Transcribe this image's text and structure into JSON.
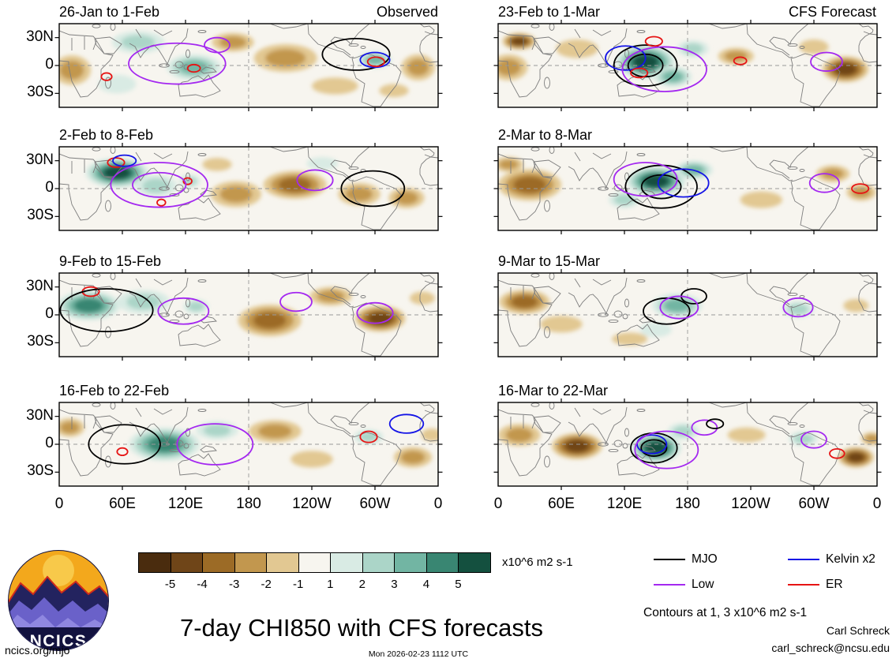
{
  "header": {
    "left_heading": "Observed",
    "right_heading": "CFS Forecast"
  },
  "footer": {
    "title": "7-day CHI850 with CFS forecasts",
    "site": "ncics.org/mjo",
    "timestamp": "Mon 2026-02-23 1112 UTC",
    "author": "Carl Schreck",
    "email": "carl_schreck@ncsu.edu",
    "contours_note": "Contours at 1, 3 x10^6 m2 s-1",
    "logo_text": "NCICS"
  },
  "axes": {
    "x_tick_labels": [
      "0",
      "60E",
      "120E",
      "180",
      "120W",
      "60W",
      "0"
    ],
    "y_tick_labels": [
      "30N",
      "0",
      "30S"
    ]
  },
  "colorbar": {
    "units": "x10^6 m2 s-1",
    "tick_labels": [
      "-5",
      "-4",
      "-3",
      "-2",
      "-1",
      "1",
      "2",
      "3",
      "4",
      "5"
    ],
    "colors": [
      "#4a2c0e",
      "#6f4518",
      "#9c6b26",
      "#c2974e",
      "#e2c892",
      "#f7f5ef",
      "#d9ebe4",
      "#abd5c8",
      "#72b5a3",
      "#398672",
      "#14503f"
    ]
  },
  "legend": {
    "items": [
      {
        "label": "MJO",
        "color": "#000000"
      },
      {
        "label": "Low",
        "color": "#a428f0"
      },
      {
        "label": "Kelvin x2",
        "color": "#1414e6"
      },
      {
        "label": "ER",
        "color": "#e61414"
      }
    ]
  },
  "chart_data": {
    "type": "heatmap",
    "title": "7-day CHI850 with CFS forecasts",
    "description": "Eight 7-day mean CHI850 velocity-potential anomaly maps: left column observed (26-Jan to 22-Feb), right column CFS forecast (23-Feb to 22-Mar). Shading in x10^6 m2 s-1; contour overlays for MJO, Low, Kelvin x2 and ER filtered anomalies at 1 and 3 x10^6 m2 s-1.",
    "lon_range": [
      0,
      360
    ],
    "lat_range": [
      -45,
      45
    ],
    "shading_levels": [
      -5,
      -4,
      -3,
      -2,
      -1,
      1,
      2,
      3,
      4,
      5
    ],
    "shading_units": "x10^6 m2 s-1",
    "contour_levels": [
      1,
      3
    ],
    "contour_colors": {
      "MJO": "#000000",
      "Low": "#a428f0",
      "Kelvin": "#1414e6",
      "ER": "#e61414"
    },
    "panels": [
      {
        "id": "obs-1",
        "column": "Observed",
        "title": "26-Jan to 1-Feb",
        "anomalies": [
          {
            "lon": 75,
            "lat": 25,
            "v": 2,
            "rlon": 25,
            "rlat": 12
          },
          {
            "lon": 128,
            "lat": -2,
            "v": 3,
            "rlon": 26,
            "rlat": 14
          },
          {
            "lon": 55,
            "lat": -20,
            "v": 1,
            "rlon": 18,
            "rlat": 10
          },
          {
            "lon": 300,
            "lat": 6,
            "v": 3,
            "rlon": 16,
            "rlat": 9
          },
          {
            "lon": 12,
            "lat": -5,
            "v": -2,
            "rlon": 18,
            "rlat": 16
          },
          {
            "lon": 165,
            "lat": 25,
            "v": -2,
            "rlon": 20,
            "rlat": 10
          },
          {
            "lon": 215,
            "lat": 8,
            "v": -2,
            "rlon": 30,
            "rlat": 15
          },
          {
            "lon": 262,
            "lat": -22,
            "v": -1,
            "rlon": 22,
            "rlat": 9
          },
          {
            "lon": 341,
            "lat": -2,
            "v": -2,
            "rlon": 16,
            "rlat": 14
          },
          {
            "lon": 318,
            "lat": -27,
            "v": -1,
            "rlon": 14,
            "rlat": 7
          }
        ],
        "contours": [
          {
            "type": "ER",
            "lon": 45,
            "lat": -12,
            "rlon": 5,
            "rlat": 4
          },
          {
            "type": "ER",
            "lon": 128,
            "lat": -3,
            "rlon": 6,
            "rlat": 4
          },
          {
            "type": "Low",
            "lon": 112,
            "lat": 2,
            "rlon": 46,
            "rlat": 22
          },
          {
            "type": "Low",
            "lon": 150,
            "lat": 22,
            "rlon": 12,
            "rlat": 8
          },
          {
            "type": "MJO",
            "lon": 282,
            "lat": 12,
            "rlon": 32,
            "rlat": 17
          },
          {
            "type": "Kelvin",
            "lon": 300,
            "lat": 6,
            "rlon": 14,
            "rlat": 8
          },
          {
            "type": "ER",
            "lon": 301,
            "lat": 4,
            "rlon": 8,
            "rlat": 5
          }
        ]
      },
      {
        "id": "obs-2",
        "column": "Observed",
        "title": "2-Feb to 8-Feb",
        "anomalies": [
          {
            "lon": 55,
            "lat": 17,
            "v": 5,
            "rlon": 30,
            "rlat": 16
          },
          {
            "lon": 92,
            "lat": 3,
            "v": 2,
            "rlon": 20,
            "rlat": 12
          },
          {
            "lon": 124,
            "lat": 8,
            "v": 2,
            "rlon": 10,
            "rlat": 7
          },
          {
            "lon": 250,
            "lat": 27,
            "v": 1,
            "rlon": 15,
            "rlat": 7
          },
          {
            "lon": 168,
            "lat": -6,
            "v": -2,
            "rlon": 24,
            "rlat": 14
          },
          {
            "lon": 224,
            "lat": 4,
            "v": -3,
            "rlon": 30,
            "rlat": 15
          },
          {
            "lon": 285,
            "lat": -6,
            "v": -2,
            "rlon": 20,
            "rlat": 12
          },
          {
            "lon": 330,
            "lat": -10,
            "v": -2,
            "rlon": 17,
            "rlat": 11
          },
          {
            "lon": 150,
            "lat": 26,
            "v": -1,
            "rlon": 14,
            "rlat": 7
          }
        ],
        "contours": [
          {
            "type": "ER",
            "lon": 54,
            "lat": 28,
            "rlon": 8,
            "rlat": 5
          },
          {
            "type": "Kelvin",
            "lon": 62,
            "lat": 30,
            "rlon": 11,
            "rlat": 6
          },
          {
            "type": "ER",
            "lon": 122,
            "lat": 8,
            "rlon": 4,
            "rlat": 3.5
          },
          {
            "type": "ER",
            "lon": 97,
            "lat": -15,
            "rlon": 4,
            "rlat": 3.5
          },
          {
            "type": "Low",
            "lon": 95,
            "lat": 4,
            "rlon": 46,
            "rlat": 24,
            "double": true
          },
          {
            "type": "Low",
            "lon": 243,
            "lat": 9,
            "rlon": 17,
            "rlat": 11
          },
          {
            "type": "MJO",
            "lon": 298,
            "lat": 0,
            "rlon": 30,
            "rlat": 19
          }
        ]
      },
      {
        "id": "obs-3",
        "column": "Observed",
        "title": "9-Feb to 15-Feb",
        "anomalies": [
          {
            "lon": 28,
            "lat": 10,
            "v": 4,
            "rlon": 30,
            "rlat": 16
          },
          {
            "lon": 80,
            "lat": 14,
            "v": 2,
            "rlon": 25,
            "rlat": 13
          },
          {
            "lon": 130,
            "lat": 9,
            "v": 2,
            "rlon": 12,
            "rlat": 8
          },
          {
            "lon": 200,
            "lat": -6,
            "v": -3,
            "rlon": 30,
            "rlat": 17
          },
          {
            "lon": 258,
            "lat": 20,
            "v": -2,
            "rlon": 20,
            "rlat": 10
          },
          {
            "lon": 305,
            "lat": -4,
            "v": -4,
            "rlon": 24,
            "rlat": 14
          },
          {
            "lon": 345,
            "lat": 18,
            "v": -1,
            "rlon": 12,
            "rlat": 7
          }
        ],
        "contours": [
          {
            "type": "ER",
            "lon": 30,
            "lat": 25,
            "rlon": 8,
            "rlat": 5
          },
          {
            "type": "MJO",
            "lon": 45,
            "lat": 5,
            "rlon": 44,
            "rlat": 23
          },
          {
            "type": "Low",
            "lon": 118,
            "lat": 4,
            "rlon": 24,
            "rlat": 14
          },
          {
            "type": "Low",
            "lon": 225,
            "lat": 14,
            "rlon": 15,
            "rlat": 10
          },
          {
            "type": "Low",
            "lon": 300,
            "lat": 2,
            "rlon": 17,
            "rlat": 11
          }
        ]
      },
      {
        "id": "obs-4",
        "column": "Observed",
        "title": "16-Feb to 22-Feb",
        "anomalies": [
          {
            "lon": 100,
            "lat": 0,
            "v": 4,
            "rlon": 34,
            "rlat": 18
          },
          {
            "lon": 150,
            "lat": 15,
            "v": 2,
            "rlon": 20,
            "rlat": 10
          },
          {
            "lon": 294,
            "lat": 8,
            "v": 2,
            "rlon": 14,
            "rlat": 8
          },
          {
            "lon": 10,
            "lat": 18,
            "v": -2,
            "rlon": 14,
            "rlat": 10
          },
          {
            "lon": 205,
            "lat": 14,
            "v": -2,
            "rlon": 25,
            "rlat": 12
          },
          {
            "lon": 240,
            "lat": -16,
            "v": -1,
            "rlon": 20,
            "rlat": 9
          },
          {
            "lon": 336,
            "lat": -14,
            "v": -2,
            "rlon": 18,
            "rlat": 11
          },
          {
            "lon": 354,
            "lat": 10,
            "v": -1,
            "rlon": 10,
            "rlat": 7
          }
        ],
        "contours": [
          {
            "type": "MJO",
            "lon": 62,
            "lat": 0,
            "rlon": 34,
            "rlat": 21
          },
          {
            "type": "ER",
            "lon": 60,
            "lat": -8,
            "rlon": 5,
            "rlat": 4
          },
          {
            "type": "Low",
            "lon": 148,
            "lat": 0,
            "rlon": 36,
            "rlat": 22
          },
          {
            "type": "ER",
            "lon": 294,
            "lat": 8,
            "rlon": 8,
            "rlat": 6
          },
          {
            "type": "Kelvin",
            "lon": 330,
            "lat": 22,
            "rlon": 16,
            "rlat": 10
          }
        ]
      },
      {
        "id": "fcst-1",
        "column": "CFS Forecast",
        "title": "23-Feb to 1-Mar",
        "anomalies": [
          {
            "lon": 140,
            "lat": 4,
            "v": 5,
            "rlon": 28,
            "rlat": 18
          },
          {
            "lon": 166,
            "lat": -12,
            "v": 3,
            "rlon": 18,
            "rlat": 11
          },
          {
            "lon": 185,
            "lat": 18,
            "v": 2,
            "rlon": 15,
            "rlat": 9
          },
          {
            "lon": 20,
            "lat": 26,
            "v": -4,
            "rlon": 16,
            "rlat": 9
          },
          {
            "lon": 10,
            "lat": -2,
            "v": -2,
            "rlon": 18,
            "rlat": 14
          },
          {
            "lon": 75,
            "lat": 18,
            "v": -1,
            "rlon": 20,
            "rlat": 10
          },
          {
            "lon": 226,
            "lat": 10,
            "v": -2,
            "rlon": 17,
            "rlat": 9
          },
          {
            "lon": 330,
            "lat": -4,
            "v": -4,
            "rlon": 22,
            "rlat": 14
          },
          {
            "lon": 300,
            "lat": 20,
            "v": -1,
            "rlon": 14,
            "rlat": 8
          }
        ],
        "contours": [
          {
            "type": "MJO",
            "lon": 140,
            "lat": 0,
            "rlon": 30,
            "rlat": 22,
            "double": true
          },
          {
            "type": "Kelvin",
            "lon": 121,
            "lat": 8,
            "rlon": 19,
            "rlat": 13
          },
          {
            "type": "ER",
            "lon": 134,
            "lat": -8,
            "rlon": 8,
            "rlat": 5
          },
          {
            "type": "ER",
            "lon": 148,
            "lat": 26,
            "rlon": 8,
            "rlat": 5
          },
          {
            "type": "Low",
            "lon": 158,
            "lat": -4,
            "rlon": 40,
            "rlat": 24
          },
          {
            "type": "Low",
            "lon": 312,
            "lat": 4,
            "rlon": 15,
            "rlat": 10
          },
          {
            "type": "ER",
            "lon": 230,
            "lat": 5,
            "rlon": 6,
            "rlat": 4
          }
        ]
      },
      {
        "id": "fcst-2",
        "column": "CFS Forecast",
        "title": "2-Mar to 8-Mar",
        "anomalies": [
          {
            "lon": 30,
            "lat": 4,
            "v": -3,
            "rlon": 30,
            "rlat": 17
          },
          {
            "lon": 10,
            "lat": 26,
            "v": -2,
            "rlon": 14,
            "rlat": 8
          },
          {
            "lon": 150,
            "lat": 8,
            "v": 5,
            "rlon": 28,
            "rlat": 16
          },
          {
            "lon": 186,
            "lat": 20,
            "v": 3,
            "rlon": 18,
            "rlat": 10
          },
          {
            "lon": 120,
            "lat": -12,
            "v": 2,
            "rlon": 15,
            "rlat": 9
          },
          {
            "lon": 250,
            "lat": -12,
            "v": -1,
            "rlon": 20,
            "rlat": 9
          },
          {
            "lon": 318,
            "lat": 16,
            "v": -2,
            "rlon": 16,
            "rlat": 9
          },
          {
            "lon": 345,
            "lat": -4,
            "v": -2,
            "rlon": 14,
            "rlat": 9
          }
        ],
        "contours": [
          {
            "type": "MJO",
            "lon": 155,
            "lat": 2,
            "rlon": 34,
            "rlat": 23,
            "double": true
          },
          {
            "type": "Kelvin",
            "lon": 176,
            "lat": 6,
            "rlon": 24,
            "rlat": 15
          },
          {
            "type": "Low",
            "lon": 140,
            "lat": 10,
            "rlon": 30,
            "rlat": 18
          },
          {
            "type": "Low",
            "lon": 310,
            "lat": 6,
            "rlon": 14,
            "rlat": 10
          },
          {
            "type": "ER",
            "lon": 344,
            "lat": 0,
            "rlon": 8,
            "rlat": 5
          }
        ]
      },
      {
        "id": "fcst-3",
        "column": "CFS Forecast",
        "title": "9-Mar to 15-Mar",
        "anomalies": [
          {
            "lon": 25,
            "lat": 14,
            "v": -3,
            "rlon": 24,
            "rlat": 13
          },
          {
            "lon": 60,
            "lat": -10,
            "v": -1,
            "rlon": 20,
            "rlat": 9
          },
          {
            "lon": 170,
            "lat": 10,
            "v": 3,
            "rlon": 24,
            "rlat": 13
          },
          {
            "lon": 150,
            "lat": -16,
            "v": 1,
            "rlon": 15,
            "rlat": 8
          },
          {
            "lon": 285,
            "lat": 6,
            "v": 2,
            "rlon": 15,
            "rlat": 9
          },
          {
            "lon": 125,
            "lat": -26,
            "v": -1,
            "rlon": 17,
            "rlat": 7
          },
          {
            "lon": 340,
            "lat": 10,
            "v": -1,
            "rlon": 12,
            "rlat": 7
          }
        ],
        "contours": [
          {
            "type": "MJO",
            "lon": 160,
            "lat": 4,
            "rlon": 22,
            "rlat": 14
          },
          {
            "type": "MJO",
            "lon": 186,
            "lat": 20,
            "rlon": 12,
            "rlat": 8
          },
          {
            "type": "Low",
            "lon": 172,
            "lat": 8,
            "rlon": 18,
            "rlat": 12
          },
          {
            "type": "Low",
            "lon": 285,
            "lat": 8,
            "rlon": 14,
            "rlat": 10
          }
        ]
      },
      {
        "id": "fcst-4",
        "column": "CFS Forecast",
        "title": "16-Mar to 22-Mar",
        "anomalies": [
          {
            "lon": 75,
            "lat": -2,
            "v": -4,
            "rlon": 24,
            "rlat": 14
          },
          {
            "lon": 20,
            "lat": 10,
            "v": -2,
            "rlon": 20,
            "rlat": 12
          },
          {
            "lon": 150,
            "lat": -4,
            "v": 5,
            "rlon": 24,
            "rlat": 16
          },
          {
            "lon": 176,
            "lat": 14,
            "v": 2,
            "rlon": 15,
            "rlat": 9
          },
          {
            "lon": 290,
            "lat": 6,
            "v": 2,
            "rlon": 14,
            "rlat": 8
          },
          {
            "lon": 236,
            "lat": 10,
            "v": -1,
            "rlon": 18,
            "rlat": 8
          },
          {
            "lon": 340,
            "lat": -14,
            "v": -4,
            "rlon": 17,
            "rlat": 11
          },
          {
            "lon": 355,
            "lat": 6,
            "v": -2,
            "rlon": 10,
            "rlat": 7
          }
        ],
        "contours": [
          {
            "type": "MJO",
            "lon": 148,
            "lat": -4,
            "rlon": 22,
            "rlat": 16,
            "double": true
          },
          {
            "type": "Kelvin",
            "lon": 146,
            "lat": 0,
            "rlon": 14,
            "rlat": 10
          },
          {
            "type": "Low",
            "lon": 160,
            "lat": -6,
            "rlon": 30,
            "rlat": 20
          },
          {
            "type": "Low",
            "lon": 196,
            "lat": 18,
            "rlon": 12,
            "rlat": 8
          },
          {
            "type": "MJO",
            "lon": 206,
            "lat": 22,
            "rlon": 8,
            "rlat": 5
          },
          {
            "type": "Low",
            "lon": 300,
            "lat": 5,
            "rlon": 12,
            "rlat": 9
          },
          {
            "type": "ER",
            "lon": 322,
            "lat": -10,
            "rlon": 7,
            "rlat": 5
          }
        ]
      }
    ]
  }
}
